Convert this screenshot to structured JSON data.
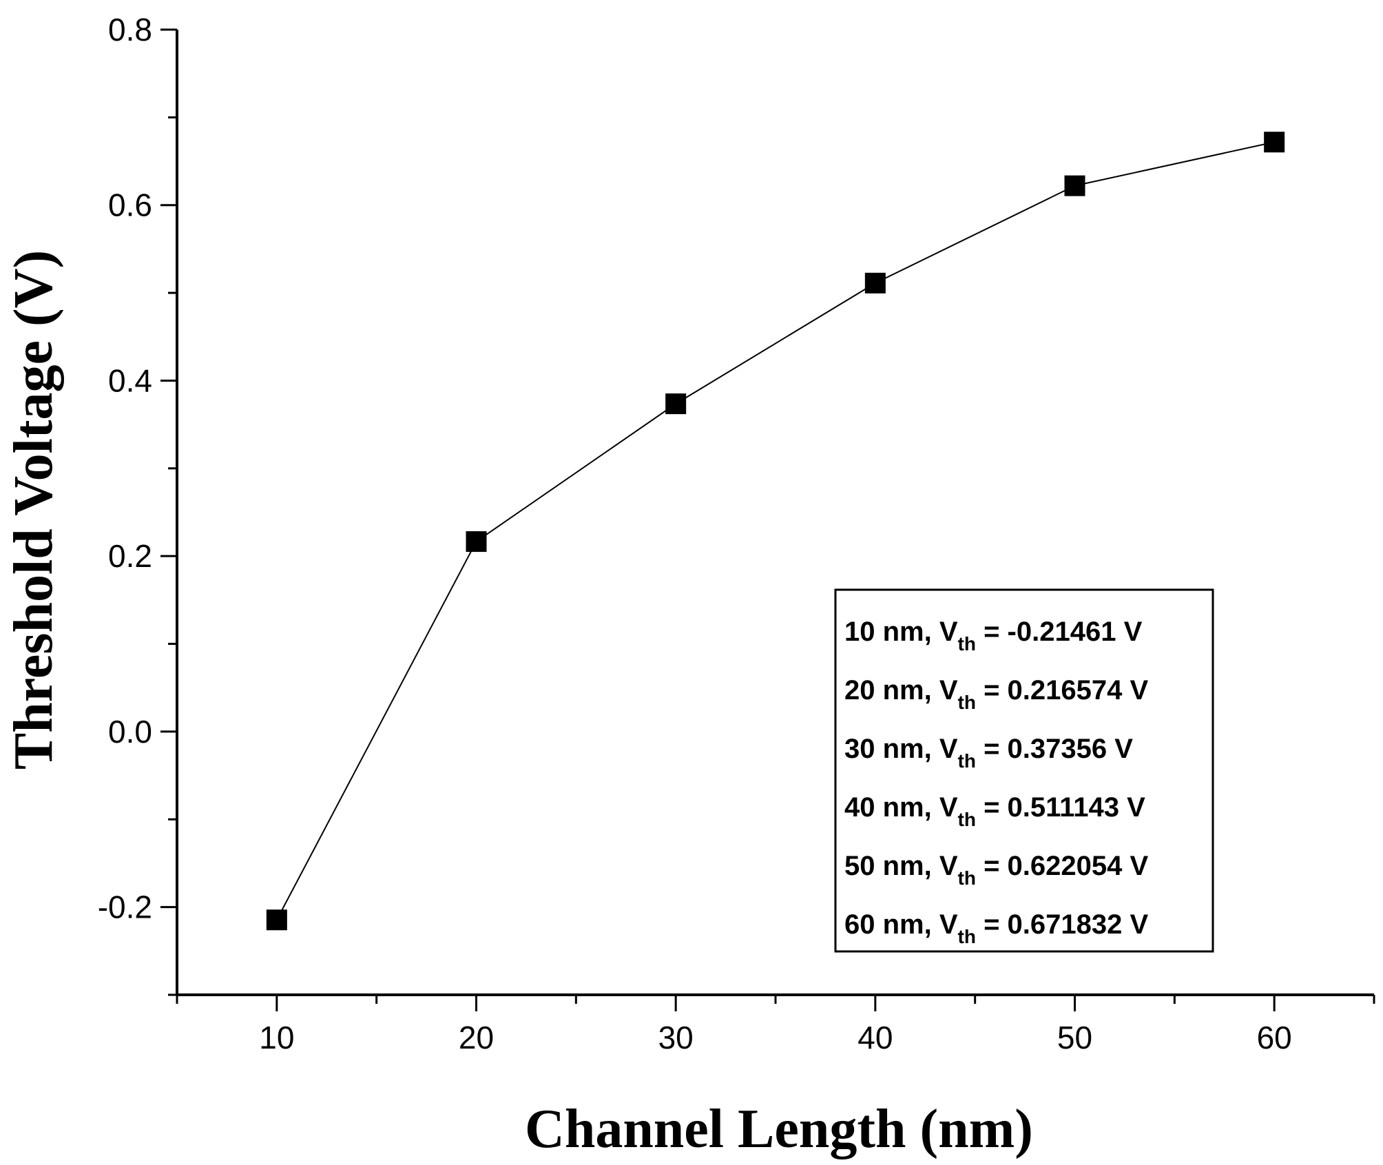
{
  "chart_data": {
    "type": "line",
    "xlabel": "Channel Length (nm)",
    "ylabel": "Threshold Voltage (V)",
    "xlim": [
      5,
      65
    ],
    "ylim": [
      -0.3,
      0.8
    ],
    "x_ticks": [
      10,
      20,
      30,
      40,
      50,
      60
    ],
    "x_tick_labels": [
      "10",
      "20",
      "30",
      "40",
      "50",
      "60"
    ],
    "y_ticks": [
      -0.2,
      0.0,
      0.2,
      0.4,
      0.6,
      0.8
    ],
    "y_tick_labels": [
      "-0.2",
      "0.0",
      "0.2",
      "0.4",
      "0.6",
      "0.8"
    ],
    "grid": false,
    "marker": "square",
    "color": "#000000",
    "series": [
      {
        "x": [
          10,
          20,
          30,
          40,
          50,
          60
        ],
        "y": [
          -0.21461,
          0.216574,
          0.37356,
          0.511143,
          0.622054,
          0.671832
        ]
      }
    ],
    "annotation_placement": "bottom-right",
    "annotations": [
      {
        "prefix": "10 nm, V",
        "sub": "th",
        "suffix": " = -0.21461 V"
      },
      {
        "prefix": "20 nm, V",
        "sub": "th",
        "suffix": " = 0.216574 V"
      },
      {
        "prefix": "30 nm, V",
        "sub": "th",
        "suffix": " = 0.37356 V"
      },
      {
        "prefix": "40 nm, V",
        "sub": "th",
        "suffix": " = 0.511143 V"
      },
      {
        "prefix": "50 nm, V",
        "sub": "th",
        "suffix": " = 0.622054 V"
      },
      {
        "prefix": "60 nm, V",
        "sub": "th",
        "suffix": " = 0.671832 V"
      }
    ]
  }
}
